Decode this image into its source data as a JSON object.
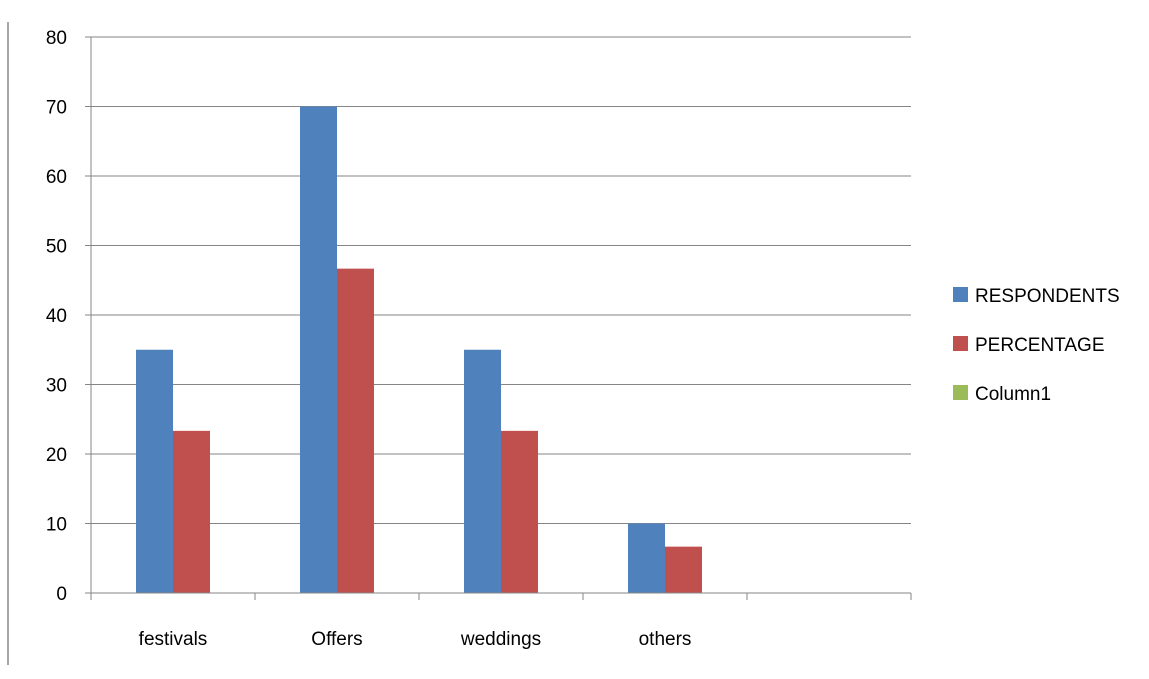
{
  "chart_data": {
    "type": "bar",
    "categories": [
      "festivals",
      "Offers",
      "weddings",
      "others",
      ""
    ],
    "series": [
      {
        "name": "RESPONDENTS",
        "values": [
          35,
          70,
          35,
          10,
          null
        ],
        "color": "#4f81bd"
      },
      {
        "name": "PERCENTAGE",
        "values": [
          23.33,
          46.67,
          23.33,
          6.67,
          null
        ],
        "color": "#c0504d"
      },
      {
        "name": "Column1",
        "values": [
          null,
          null,
          null,
          null,
          null
        ],
        "color": "#9bbb59"
      }
    ],
    "ylim": [
      0,
      80
    ],
    "yticks": [
      0,
      10,
      20,
      30,
      40,
      50,
      60,
      70,
      80
    ],
    "grid": true,
    "legend": "right"
  }
}
